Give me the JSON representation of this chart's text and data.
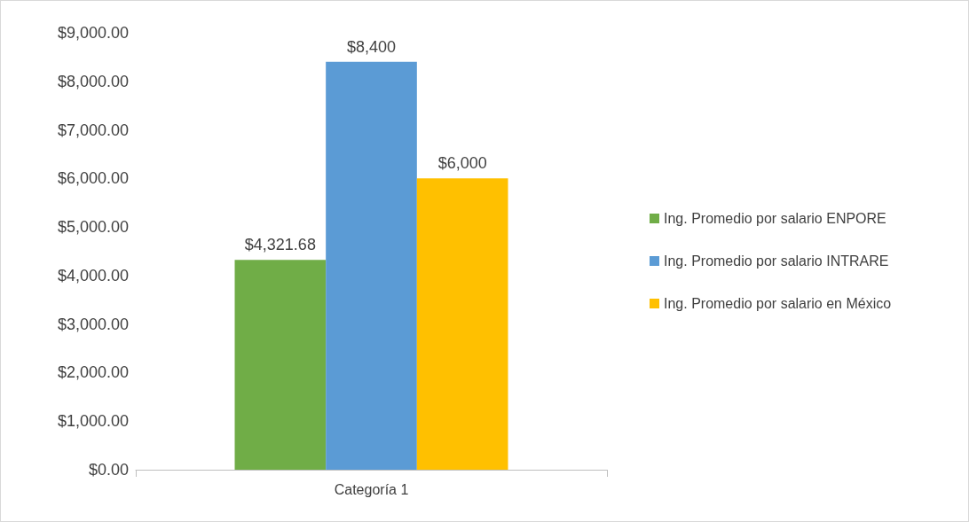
{
  "chart_data": {
    "type": "bar",
    "categories": [
      "Categoría 1"
    ],
    "series": [
      {
        "name": "Ing. Promedio por salario ENPORE",
        "color": "#70ad47",
        "values": [
          4321.68
        ],
        "value_labels": [
          "$4,321.68"
        ]
      },
      {
        "name": "Ing. Promedio por salario INTRARE",
        "color": "#5b9bd5",
        "values": [
          8400
        ],
        "value_labels": [
          "$8,400"
        ]
      },
      {
        "name": "Ing. Promedio por salario en México",
        "color": "#ffc000",
        "values": [
          6000
        ],
        "value_labels": [
          "$6,000"
        ]
      }
    ],
    "ylim": [
      0,
      9000
    ],
    "yticks": [
      {
        "value": 0,
        "label": "$0.00"
      },
      {
        "value": 1000,
        "label": "$1,000.00"
      },
      {
        "value": 2000,
        "label": "$2,000.00"
      },
      {
        "value": 3000,
        "label": "$3,000.00"
      },
      {
        "value": 4000,
        "label": "$4,000.00"
      },
      {
        "value": 5000,
        "label": "$5,000.00"
      },
      {
        "value": 6000,
        "label": "$6,000.00"
      },
      {
        "value": 7000,
        "label": "$7,000.00"
      },
      {
        "value": 8000,
        "label": "$8,000.00"
      },
      {
        "value": 9000,
        "label": "$9,000.00"
      }
    ],
    "grid": false,
    "legend": "right"
  }
}
